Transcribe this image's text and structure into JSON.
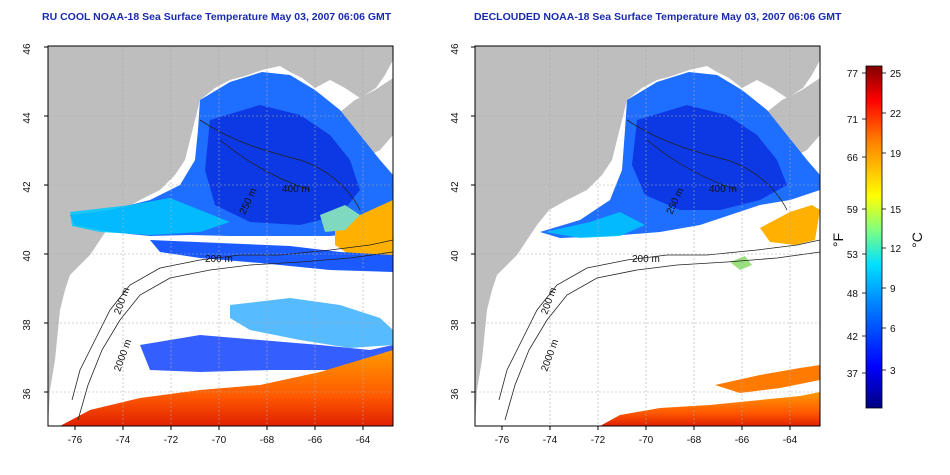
{
  "left_panel": {
    "title": "RU COOL NOAA-18 Sea Surface Temperature May 03, 2007 06:06 GMT",
    "lat_ticks": [
      "46",
      "44",
      "42",
      "40",
      "38",
      "36"
    ],
    "lon_ticks": [
      "-76",
      "-74",
      "-72",
      "-70",
      "-68",
      "-66",
      "-64"
    ],
    "contour_labels": [
      "400 m",
      "250 m",
      "200 m",
      "200 m",
      "2000 m"
    ]
  },
  "right_panel": {
    "title": "DECLOUDED NOAA-18 Sea Surface Temperature May 03, 2007 06:06 GMT",
    "lat_ticks": [
      "46",
      "44",
      "42",
      "40",
      "38",
      "36"
    ],
    "lon_ticks": [
      "-76",
      "-74",
      "-72",
      "-70",
      "-68",
      "-66",
      "-64"
    ],
    "contour_labels": [
      "400 m",
      "250 m",
      "200 m",
      "200 m",
      "2000 m"
    ]
  },
  "colorbar": {
    "fahrenheit_label": "°F",
    "celsius_label": "°C",
    "fahrenheit_ticks": [
      "77",
      "71",
      "66",
      "59",
      "53",
      "48",
      "42",
      "37"
    ],
    "celsius_ticks": [
      "25",
      "22",
      "19",
      "15",
      "12",
      "9",
      "6",
      "3"
    ],
    "colors": [
      "#000080",
      "#0000ff",
      "#0080ff",
      "#00e0ff",
      "#80ff80",
      "#ffff00",
      "#ff8000",
      "#ff0000",
      "#800000"
    ]
  },
  "colors": {
    "land": "#bebebe",
    "title": "#1a2bb0"
  }
}
